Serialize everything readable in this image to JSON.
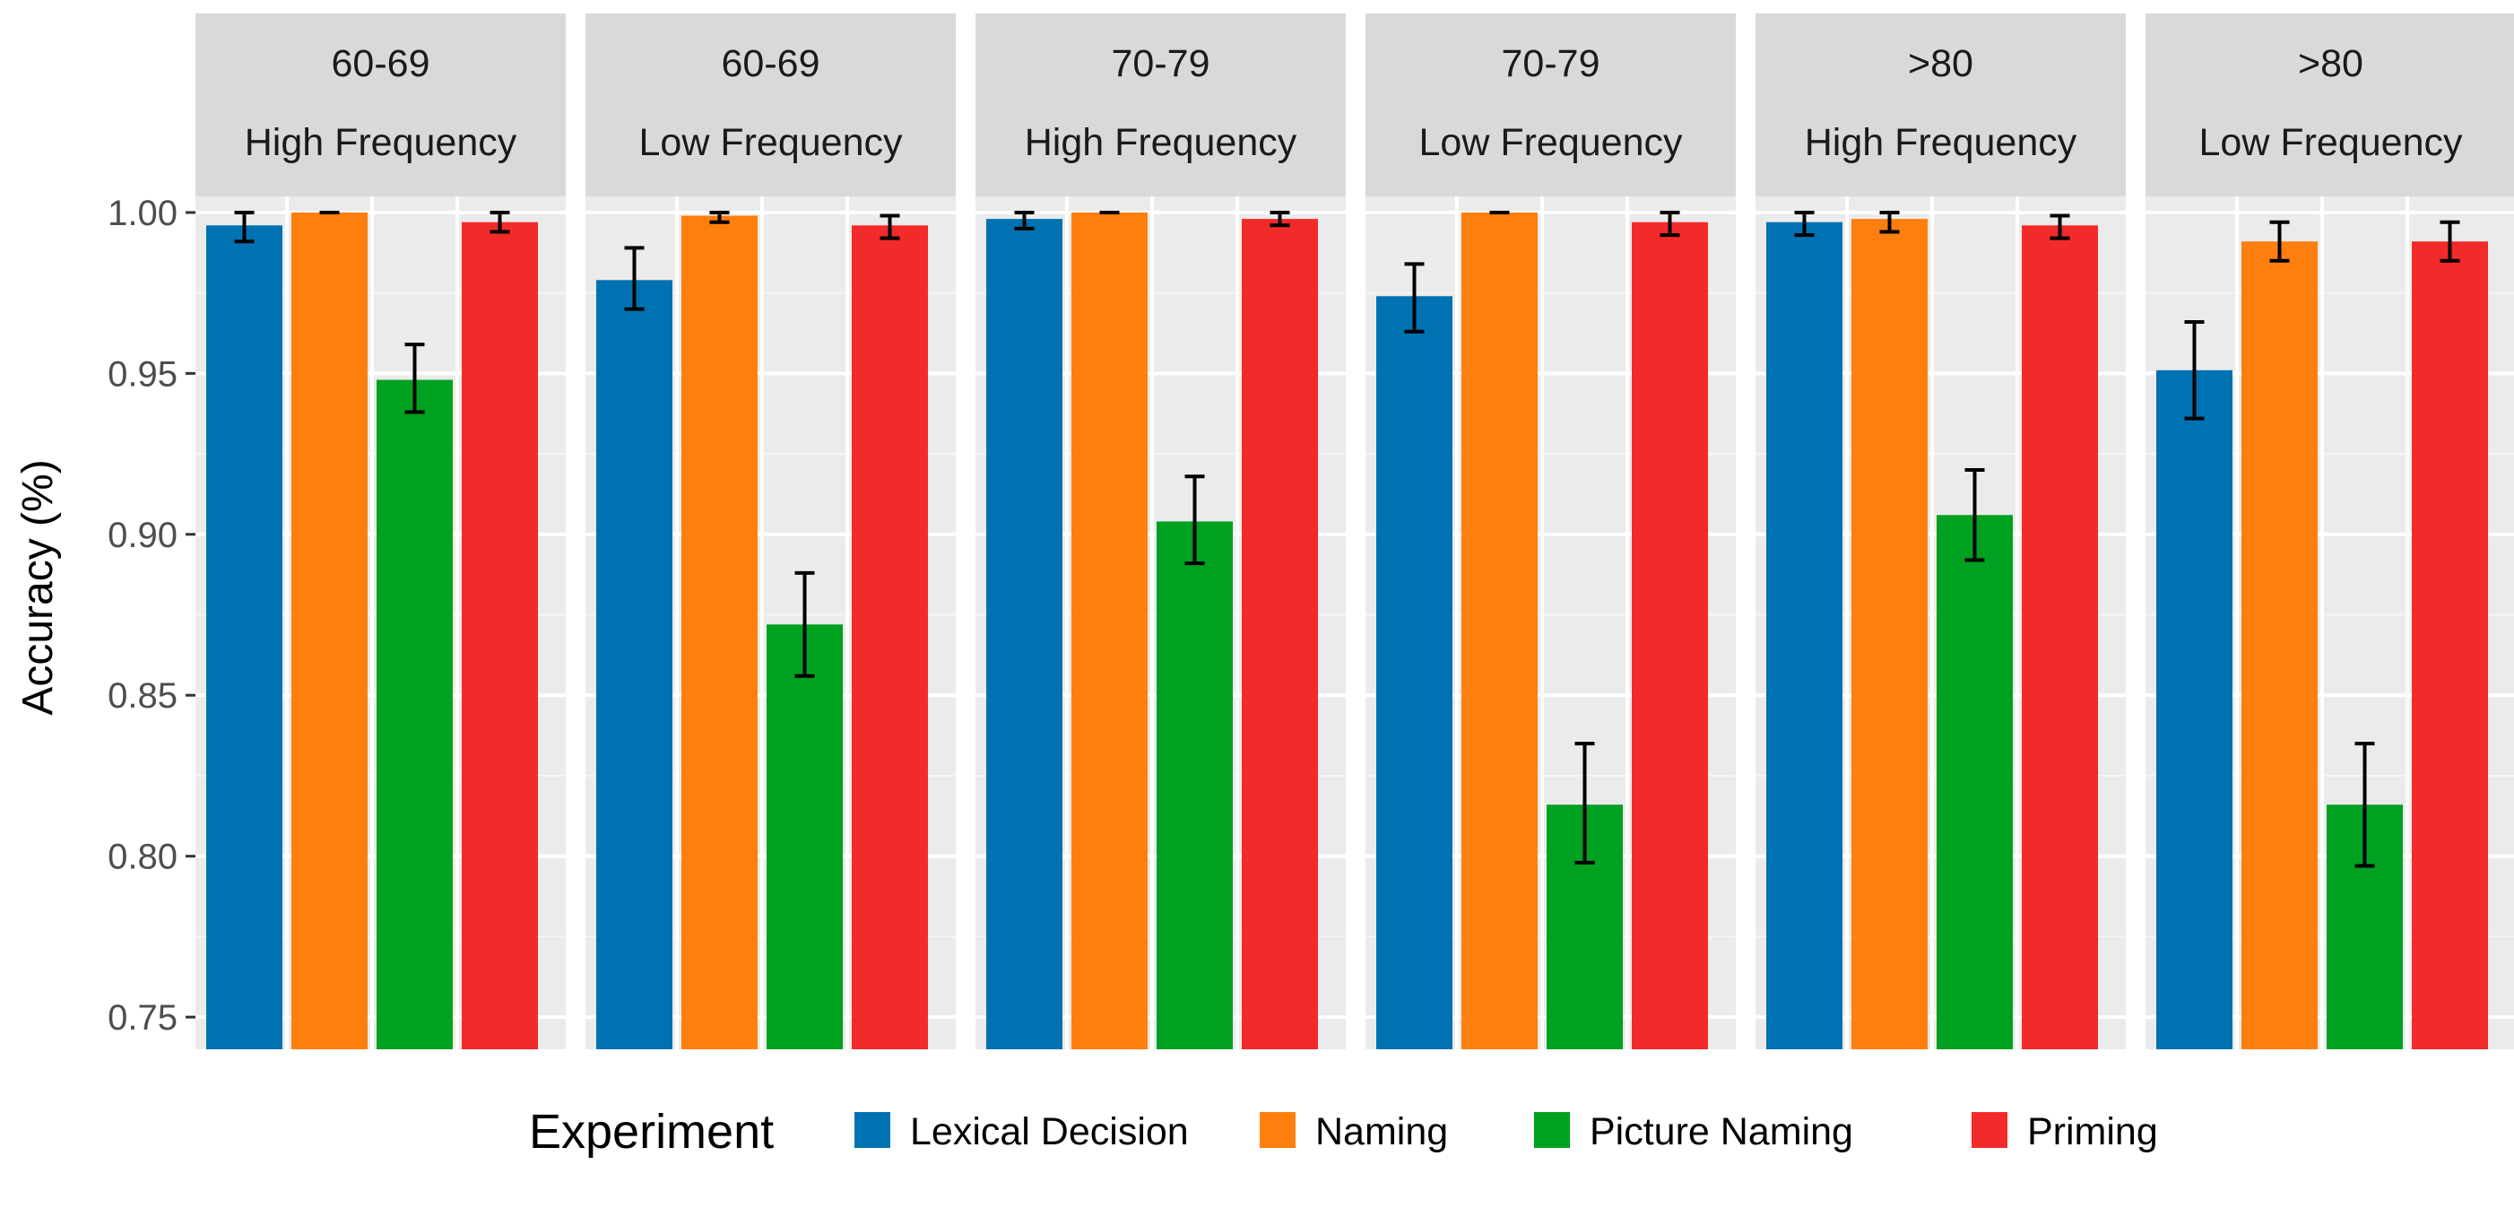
{
  "chart_data": {
    "type": "bar",
    "ylabel": "Accuracy (%)",
    "xlabel": "",
    "ylim": [
      0.74,
      1.005
    ],
    "yticks": [
      0.75,
      0.8,
      0.85,
      0.9,
      0.95,
      1.0
    ],
    "ytick_labels": [
      "0.75",
      "0.80",
      "0.85",
      "0.90",
      "0.95",
      "1.00"
    ],
    "grid": true,
    "legend": {
      "title": "Experiment",
      "position": "bottom",
      "entries": [
        "Lexical Decision",
        "Naming",
        "Picture Naming",
        "Priming"
      ]
    },
    "series_colors": [
      "#0072b2",
      "#ff7f0e",
      "#00a020",
      "#f22a2a"
    ],
    "panels": [
      {
        "strip_top": "60-69",
        "strip_bottom": "High Frequency",
        "values": [
          0.996,
          1.0,
          0.948,
          0.997
        ],
        "err_low": [
          0.991,
          1.0,
          0.938,
          0.994
        ],
        "err_high": [
          1.0,
          1.0,
          0.959,
          1.0
        ]
      },
      {
        "strip_top": "60-69",
        "strip_bottom": "Low Frequency",
        "values": [
          0.979,
          0.999,
          0.872,
          0.996
        ],
        "err_low": [
          0.97,
          0.997,
          0.856,
          0.992
        ],
        "err_high": [
          0.989,
          1.0,
          0.888,
          0.999
        ]
      },
      {
        "strip_top": "70-79",
        "strip_bottom": "High Frequency",
        "values": [
          0.998,
          1.0,
          0.904,
          0.998
        ],
        "err_low": [
          0.995,
          1.0,
          0.891,
          0.996
        ],
        "err_high": [
          1.0,
          1.0,
          0.918,
          1.0
        ]
      },
      {
        "strip_top": "70-79",
        "strip_bottom": "Low Frequency",
        "values": [
          0.974,
          1.0,
          0.816,
          0.997
        ],
        "err_low": [
          0.963,
          1.0,
          0.798,
          0.993
        ],
        "err_high": [
          0.984,
          1.0,
          0.835,
          1.0
        ]
      },
      {
        "strip_top": ">80",
        "strip_bottom": "High Frequency",
        "values": [
          0.997,
          0.998,
          0.906,
          0.996
        ],
        "err_low": [
          0.993,
          0.994,
          0.892,
          0.992
        ],
        "err_high": [
          1.0,
          1.0,
          0.92,
          0.999
        ]
      },
      {
        "strip_top": ">80",
        "strip_bottom": "Low Frequency",
        "values": [
          0.951,
          0.991,
          0.816,
          0.991
        ],
        "err_low": [
          0.936,
          0.985,
          0.797,
          0.985
        ],
        "err_high": [
          0.966,
          0.997,
          0.835,
          0.997
        ]
      }
    ]
  }
}
